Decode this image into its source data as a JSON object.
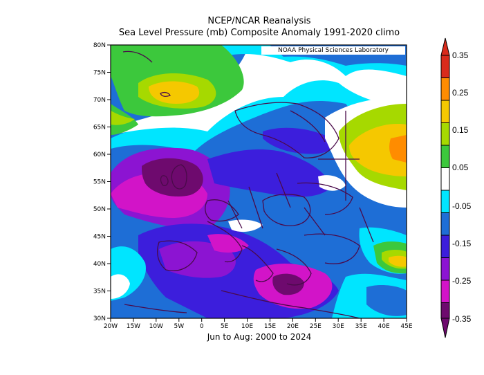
{
  "title": "NCEP/NCAR Reanalysis",
  "subtitle": "Sea Level Pressure (mb) Composite Anomaly 1991-2020 climo",
  "credit": "NOAA Physical Sciences Laboratory",
  "period": "Jun to Aug: 2000 to 2024",
  "lat_ticks": [
    "80N",
    "75N",
    "70N",
    "65N",
    "60N",
    "55N",
    "50N",
    "45N",
    "40N",
    "35N",
    "30N"
  ],
  "lon_ticks": [
    "20W",
    "15W",
    "10W",
    "5W",
    "0",
    "5E",
    "10E",
    "15E",
    "20E",
    "25E",
    "30E",
    "35E",
    "40E",
    "45E"
  ],
  "colorbar": {
    "labels": [
      "0.35",
      "0.25",
      "0.15",
      "0.05",
      "-0.05",
      "-0.15",
      "-0.25",
      "-0.35"
    ],
    "colors": [
      "#d92b1c",
      "#ff8c00",
      "#f5c800",
      "#a6d900",
      "#3cc83c",
      "#ffffff",
      "#00e5ff",
      "#1e6ed6",
      "#3c1edc",
      "#8c14d2",
      "#d214c8",
      "#6e0a6e"
    ]
  },
  "fields": {
    "map_extent": {
      "lon": [
        -20,
        45
      ],
      "lat": [
        30,
        80
      ]
    }
  }
}
